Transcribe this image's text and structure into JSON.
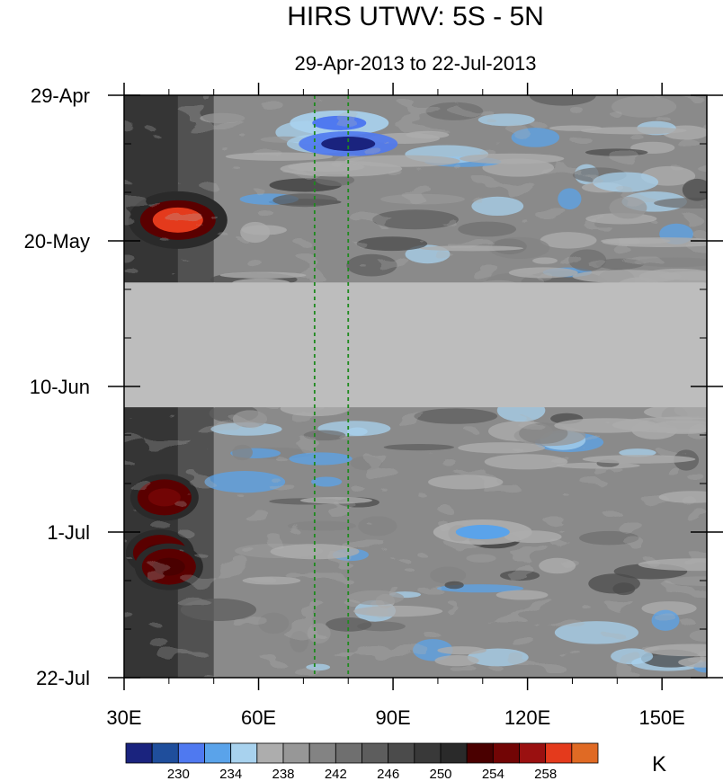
{
  "chart_data": {
    "type": "heatmap",
    "title": "HIRS UTWV: 5S - 5N",
    "subtitle": "29-Apr-2013 to 22-Jul-2013",
    "xlabel": "",
    "ylabel": "",
    "x_range": [
      30,
      160
    ],
    "x_ticks": [
      {
        "value": 30,
        "label": "30E"
      },
      {
        "value": 60,
        "label": "60E"
      },
      {
        "value": 90,
        "label": "90E"
      },
      {
        "value": 120,
        "label": "120E"
      },
      {
        "value": 150,
        "label": "150E"
      }
    ],
    "y_ticks": [
      {
        "value": "2013-04-29",
        "label": "29-Apr"
      },
      {
        "value": "2013-05-20",
        "label": "20-May"
      },
      {
        "value": "2013-06-10",
        "label": "10-Jun"
      },
      {
        "value": "2013-07-01",
        "label": "1-Jul"
      },
      {
        "value": "2013-07-22",
        "label": "22-Jul"
      }
    ],
    "y_start": "2013-04-29",
    "y_end": "2013-07-22",
    "missing_data_period": {
      "start": "2013-05-26",
      "end": "2013-06-13"
    },
    "reference_lines_lon": [
      72.5,
      80
    ],
    "hotspots": [
      {
        "lon": 42,
        "date": "2013-05-17",
        "value": 258
      },
      {
        "lon": 39,
        "date": "2013-06-26",
        "value": 254
      },
      {
        "lon": 38,
        "date": "2013-07-04",
        "value": 252
      },
      {
        "lon": 40,
        "date": "2013-07-06",
        "value": 252
      }
    ],
    "moist_bands": [
      {
        "lon": 78,
        "date": "2013-05-03",
        "value": 230
      },
      {
        "lon": 80,
        "date": "2013-05-06",
        "value": 226
      },
      {
        "lon": 110,
        "date": "2013-07-01",
        "value": 232
      }
    ],
    "colorbar": {
      "unit": "K",
      "levels": [
        228,
        230,
        232,
        234,
        236,
        238,
        240,
        242,
        244,
        246,
        248,
        250,
        252,
        254,
        256,
        258
      ],
      "tick_labels": [
        "230",
        "234",
        "238",
        "242",
        "246",
        "250",
        "254",
        "258"
      ],
      "colors": [
        "#1a237e",
        "#1f4e9c",
        "#4f79f0",
        "#5aa3ea",
        "#a8d2ee",
        "#adadad",
        "#979797",
        "#838383",
        "#6f6f6f",
        "#5d5d5d",
        "#4b4b4b",
        "#393939",
        "#2a2a2a",
        "#4a0000",
        "#720505",
        "#9a1010",
        "#e43a1c",
        "#e06a24"
      ]
    }
  }
}
